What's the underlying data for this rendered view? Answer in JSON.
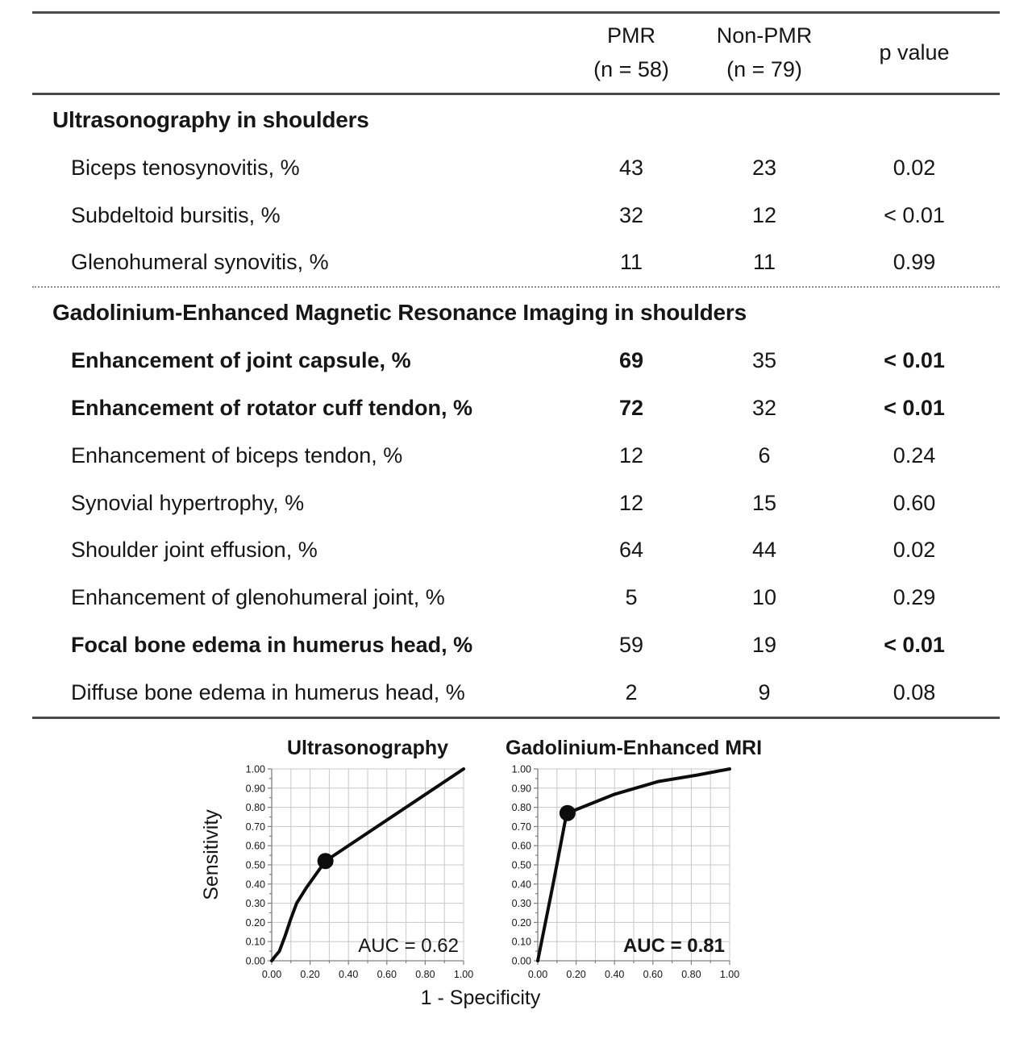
{
  "table": {
    "header": {
      "pmr": "PMR\n(n = 58)",
      "non_pmr": "Non-PMR\n(n = 79)",
      "p": "p value"
    },
    "sections": [
      {
        "title": "Ultrasonography in shoulders",
        "rows": [
          {
            "label": "Biceps tenosynovitis, %",
            "pmr": "43",
            "non_pmr": "23",
            "p": "0.02",
            "bold_label": false,
            "bold_pmr": false,
            "bold_p": false
          },
          {
            "label": "Subdeltoid bursitis, %",
            "pmr": "32",
            "non_pmr": "12",
            "p": "< 0.01",
            "bold_label": false,
            "bold_pmr": false,
            "bold_p": false
          },
          {
            "label": "Glenohumeral synovitis, %",
            "pmr": "11",
            "non_pmr": "11",
            "p": "0.99",
            "bold_label": false,
            "bold_pmr": false,
            "bold_p": false
          }
        ]
      },
      {
        "title": "Gadolinium-Enhanced Magnetic Resonance Imaging in shoulders",
        "rows": [
          {
            "label": "Enhancement of joint capsule, %",
            "pmr": "69",
            "non_pmr": "35",
            "p": "< 0.01",
            "bold_label": true,
            "bold_pmr": true,
            "bold_p": true
          },
          {
            "label": "Enhancement of rotator cuff tendon, %",
            "pmr": "72",
            "non_pmr": "32",
            "p": "< 0.01",
            "bold_label": true,
            "bold_pmr": true,
            "bold_p": true
          },
          {
            "label": "Enhancement of biceps tendon, %",
            "pmr": "12",
            "non_pmr": "6",
            "p": "0.24",
            "bold_label": false,
            "bold_pmr": false,
            "bold_p": false
          },
          {
            "label": "Synovial hypertrophy, %",
            "pmr": "12",
            "non_pmr": "15",
            "p": "0.60",
            "bold_label": false,
            "bold_pmr": false,
            "bold_p": false
          },
          {
            "label": "Shoulder joint effusion, %",
            "pmr": "64",
            "non_pmr": "44",
            "p": "0.02",
            "bold_label": false,
            "bold_pmr": false,
            "bold_p": false
          },
          {
            "label": "Enhancement of glenohumeral joint, %",
            "pmr": "5",
            "non_pmr": "10",
            "p": "0.29",
            "bold_label": false,
            "bold_pmr": false,
            "bold_p": false
          },
          {
            "label": "Focal bone edema in humerus head, %",
            "pmr": "59",
            "non_pmr": "19",
            "p": "< 0.01",
            "bold_label": true,
            "bold_pmr": false,
            "bold_p": true
          },
          {
            "label": "Diffuse bone edema in humerus head, %",
            "pmr": "2",
            "non_pmr": "9",
            "p": "0.08",
            "bold_label": false,
            "bold_pmr": false,
            "bold_p": false
          }
        ]
      }
    ]
  },
  "charts": {
    "shared_xlabel": "1 - Specificity",
    "shared_ylabel": "Sensitivity",
    "colors": {
      "curve": "#0d0d0d",
      "grid": "#c8c8c8",
      "axis": "#808080",
      "marker": "#0d0d0d"
    }
  },
  "chart_data": [
    {
      "type": "line",
      "title": "Ultrasonography",
      "xlabel": "1 - Specificity",
      "ylabel": "Sensitivity",
      "xlim": [
        0,
        1
      ],
      "ylim": [
        0,
        1
      ],
      "x_major_tick_step": 0.2,
      "x_minor_tick_step": 0.1,
      "y_major_tick_step": 0.1,
      "y_minor_tick_step": 0.05,
      "grid": true,
      "grid_step": 0.1,
      "roc_points": [
        [
          0,
          0
        ],
        [
          0.015,
          0.02
        ],
        [
          0.04,
          0.05
        ],
        [
          0.07,
          0.13
        ],
        [
          0.1,
          0.22
        ],
        [
          0.13,
          0.3
        ],
        [
          0.18,
          0.38
        ],
        [
          0.23,
          0.45
        ],
        [
          0.28,
          0.52
        ],
        [
          1.0,
          1.0
        ]
      ],
      "marker_point": [
        0.28,
        0.52
      ],
      "auc_label": "AUC = 0.62",
      "auc_bold": false
    },
    {
      "type": "line",
      "title": "Gadolinium-Enhanced MRI",
      "xlabel": "1 - Specificity",
      "ylabel": "Sensitivity",
      "xlim": [
        0,
        1
      ],
      "ylim": [
        0,
        1
      ],
      "x_major_tick_step": 0.2,
      "x_minor_tick_step": 0.1,
      "y_major_tick_step": 0.1,
      "y_minor_tick_step": 0.05,
      "grid": true,
      "grid_step": 0.1,
      "roc_points": [
        [
          0,
          0
        ],
        [
          0.08,
          0.4
        ],
        [
          0.145,
          0.74
        ],
        [
          0.155,
          0.77
        ],
        [
          0.4,
          0.868
        ],
        [
          0.63,
          0.935
        ],
        [
          0.83,
          0.968
        ],
        [
          1.0,
          1.0
        ]
      ],
      "marker_point": [
        0.155,
        0.77
      ],
      "auc_label": "AUC = 0.81",
      "auc_bold": true
    }
  ]
}
